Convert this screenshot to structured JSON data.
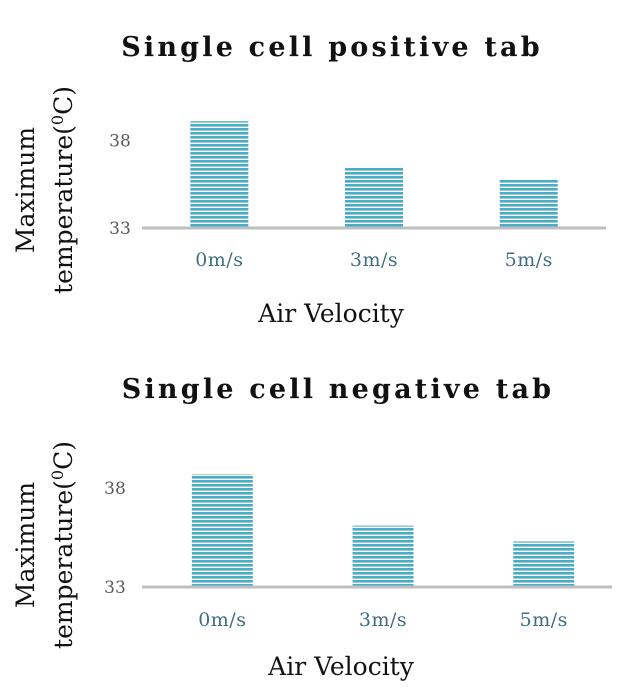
{
  "chart_data": [
    {
      "type": "bar",
      "title": "Single cell positive tab",
      "xlabel": "Air Velocity",
      "ylabel_lines": [
        "Maximum",
        "temperature(",
        "0",
        "C)"
      ],
      "categories": [
        "0m/s",
        "3m/s",
        "5m/s"
      ],
      "values": [
        39.1,
        36.5,
        35.8
      ],
      "yticks": [
        "33",
        "38"
      ],
      "ylim": [
        33,
        40
      ],
      "grid": false,
      "bar_color": "#4bacc6"
    },
    {
      "type": "bar",
      "title": "Single cell negative tab",
      "xlabel": "Air Velocity",
      "ylabel_lines": [
        "Maximum",
        "temperature(",
        "0",
        "C)"
      ],
      "categories": [
        "0m/s",
        "3m/s",
        "5m/s"
      ],
      "values": [
        38.7,
        36.1,
        35.3
      ],
      "yticks": [
        "33",
        "38"
      ],
      "ylim": [
        33,
        40
      ],
      "grid": false,
      "bar_color": "#4bacc6"
    }
  ]
}
